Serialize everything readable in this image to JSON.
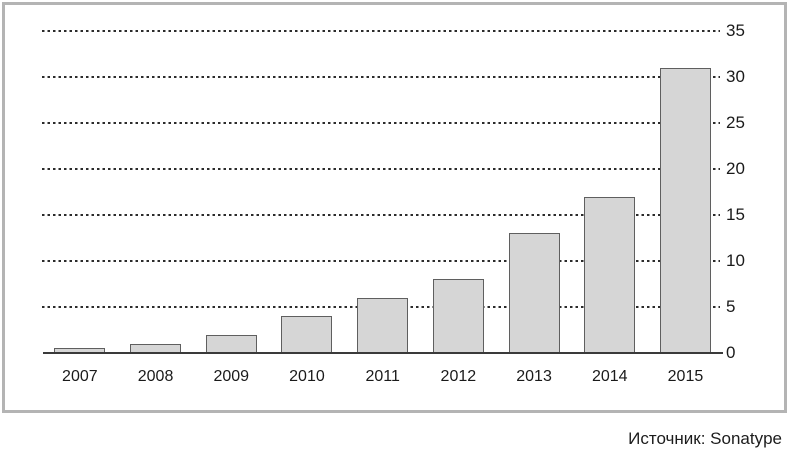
{
  "chart_data": {
    "type": "bar",
    "categories": [
      "2007",
      "2008",
      "2009",
      "2010",
      "2011",
      "2012",
      "2013",
      "2014",
      "2015"
    ],
    "values": [
      0.5,
      1,
      2,
      4,
      6,
      8,
      13,
      17,
      31
    ],
    "title": "",
    "xlabel": "",
    "ylabel": "",
    "ylim": [
      0,
      35
    ],
    "yticks": [
      0,
      5,
      10,
      15,
      20,
      25,
      30,
      35
    ],
    "ytick_side": "right",
    "grid": "horizontal-dashed",
    "legend": null,
    "bar_fill": "#d6d6d6",
    "bar_border": "#5f5f5f",
    "axis_color": "#3a3a3a",
    "frame_border_color": "#b4b4b4"
  },
  "source_note": "Источник: Sonatype"
}
